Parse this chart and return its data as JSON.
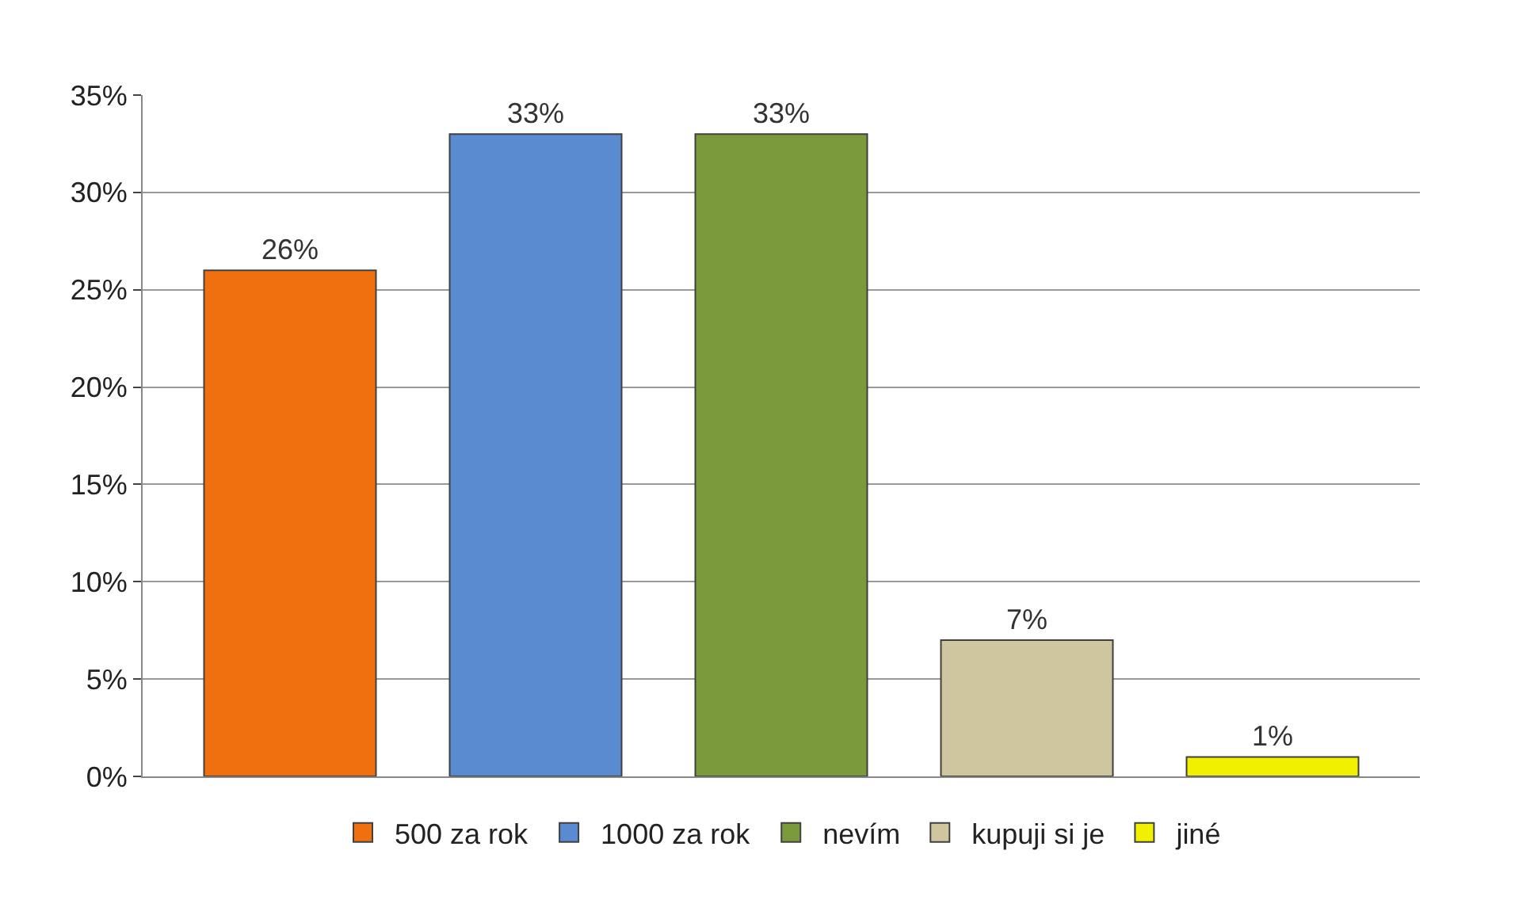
{
  "chart_data": {
    "type": "bar",
    "categories": [
      null,
      null,
      null,
      null,
      null
    ],
    "series": [
      {
        "name": "500 za rok",
        "color": "#f07010",
        "values": [
          26,
          null,
          null,
          null,
          null
        ],
        "value_labels": [
          "26%",
          null,
          null,
          null,
          null
        ]
      },
      {
        "name": "1000 za rok",
        "color": "#5a8ad0",
        "values": [
          null,
          33,
          null,
          null,
          null
        ],
        "value_labels": [
          null,
          "33%",
          null,
          null,
          null
        ]
      },
      {
        "name": "nevím",
        "color": "#7a9a3c",
        "values": [
          null,
          null,
          33,
          null,
          null
        ],
        "value_labels": [
          null,
          null,
          "33%",
          null,
          null
        ]
      },
      {
        "name": "kupuji si je",
        "color": "#cfc6a0",
        "values": [
          null,
          null,
          null,
          7,
          null
        ],
        "value_labels": [
          null,
          null,
          null,
          "7%",
          null
        ]
      },
      {
        "name": "jiné",
        "color": "#f0f000",
        "values": [
          null,
          null,
          null,
          null,
          1
        ],
        "value_labels": [
          null,
          null,
          null,
          null,
          "1%"
        ]
      }
    ],
    "ylim": [
      0,
      35
    ],
    "yticks": [
      {
        "value": 0,
        "label": "0%"
      },
      {
        "value": 5,
        "label": "5%"
      },
      {
        "value": 10,
        "label": "10%"
      },
      {
        "value": 15,
        "label": "15%"
      },
      {
        "value": 20,
        "label": "20%"
      },
      {
        "value": 25,
        "label": "25%"
      },
      {
        "value": 30,
        "label": "30%"
      },
      {
        "value": 35,
        "label": "35%"
      }
    ],
    "grid": "y",
    "legend": "bottom",
    "tick_labels": "y"
  }
}
